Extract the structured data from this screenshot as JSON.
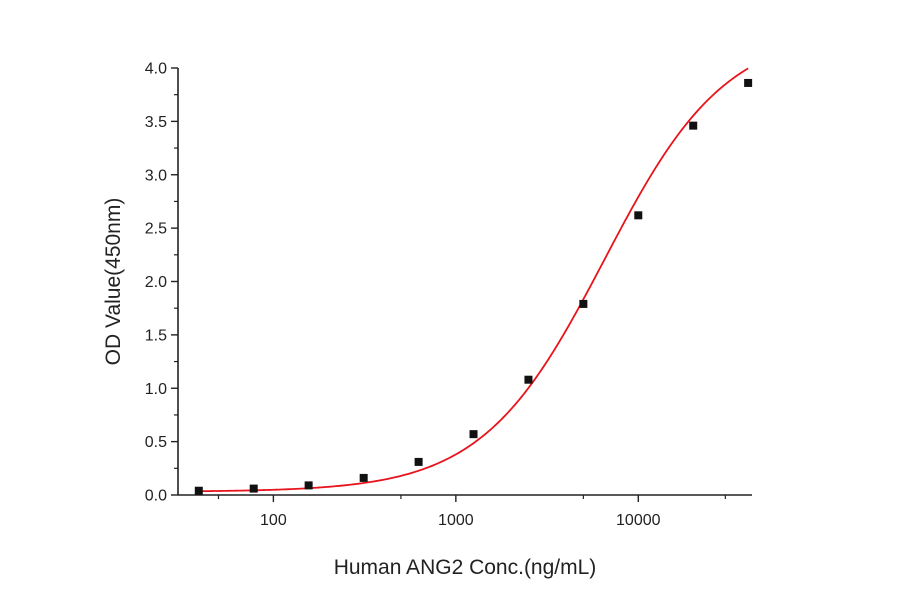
{
  "chart_data": {
    "type": "scatter",
    "title": "",
    "xlabel": "Human ANG2 Conc.(ng/mL)",
    "ylabel": "OD Value(450nm)",
    "x_scale": "log",
    "xlim": [
      30,
      42000
    ],
    "ylim": [
      0,
      4.0
    ],
    "x_ticks": [
      100,
      1000,
      10000
    ],
    "x_tick_labels": [
      "100",
      "1000",
      "10000"
    ],
    "y_ticks": [
      0,
      0.5,
      1.0,
      1.5,
      2.0,
      2.5,
      3.0,
      3.5,
      4.0
    ],
    "y_tick_labels": [
      "0.0",
      "0.5",
      "1.0",
      "1.5",
      "2.0",
      "2.5",
      "3.0",
      "3.5",
      "4.0"
    ],
    "grid": false,
    "legend": "none",
    "series": [
      {
        "kind": "points",
        "marker": "square",
        "color": "#111111",
        "x": [
          39,
          78,
          156,
          312.5,
          625,
          1250,
          2500,
          5000,
          10000,
          20000,
          40000
        ],
        "y": [
          0.04,
          0.06,
          0.09,
          0.16,
          0.31,
          0.57,
          1.08,
          1.79,
          2.62,
          3.46,
          3.86
        ]
      },
      {
        "kind": "fit",
        "model": "4PL",
        "color": "#e8141c",
        "x_range": [
          39,
          40000
        ],
        "params": {
          "A": 0.03,
          "D": 4.37,
          "C": 6500,
          "B": 1.3
        }
      }
    ]
  }
}
